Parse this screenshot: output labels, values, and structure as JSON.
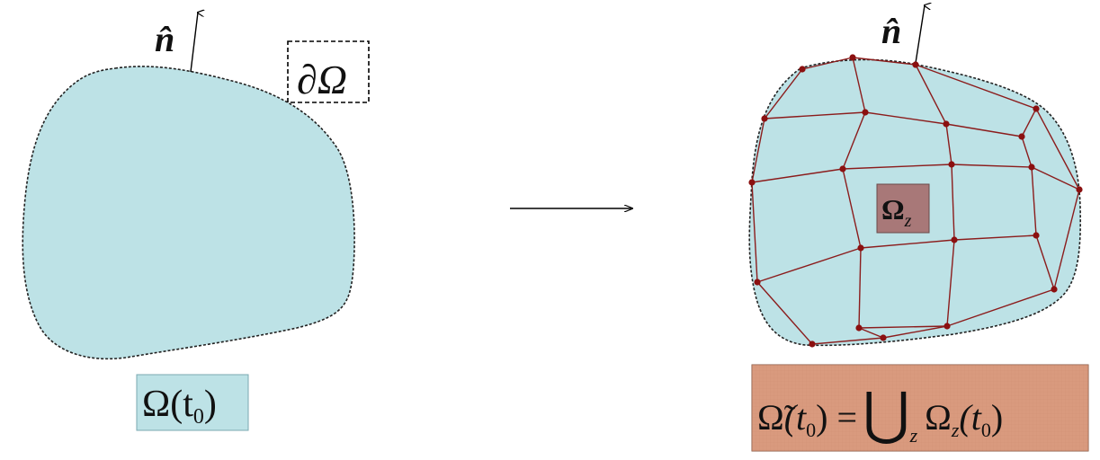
{
  "left_domain": {
    "normal_label": "n̂",
    "boundary_label": "∂Ω",
    "domain_label": {
      "main": "Ω(t",
      "sub": "0",
      "close": ")"
    }
  },
  "right_domain": {
    "normal_label": "n̂",
    "element_label": {
      "main": "Ω",
      "sub": "z"
    },
    "union_label": {
      "omega_tilde": "Ω̃",
      "lhs_open": "(t",
      "lhs_sub": "0",
      "lhs_close": ")",
      "equals": "=",
      "union_symbol": "⋃",
      "union_sub": "z",
      "omega": "Ω",
      "omega_sub": "z",
      "rhs_open": "(t",
      "rhs_sub": "0",
      "rhs_close": ")"
    }
  },
  "colors": {
    "domain_fill": "#bde2e6",
    "mesh_line": "#8b1c1c",
    "mesh_node": "#8b1010",
    "element_box": "#a87878",
    "union_box": "#d99a7e",
    "boundary_dash": "#222222"
  }
}
